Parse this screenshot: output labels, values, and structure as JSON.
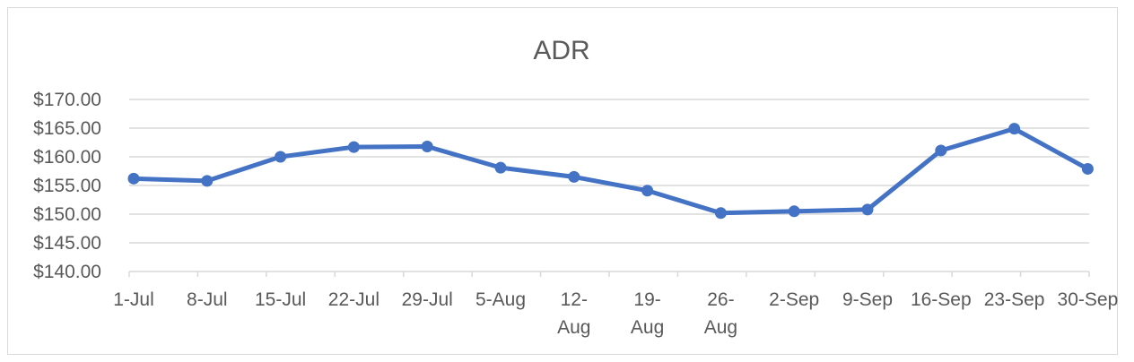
{
  "chart_data": {
    "type": "line",
    "title": "ADR",
    "xlabel": "",
    "ylabel": "",
    "categories": [
      [
        "1-Jul"
      ],
      [
        "8-Jul"
      ],
      [
        "15-Jul"
      ],
      [
        "22-Jul"
      ],
      [
        "29-Jul"
      ],
      [
        "5-Aug"
      ],
      [
        "12-",
        "Aug"
      ],
      [
        "19-",
        "Aug"
      ],
      [
        "26-",
        "Aug"
      ],
      [
        "2-Sep"
      ],
      [
        "9-Sep"
      ],
      [
        "16-Sep"
      ],
      [
        "23-Sep"
      ],
      [
        "30-Sep"
      ]
    ],
    "series": [
      {
        "values": [
          156.2,
          155.8,
          160.0,
          161.7,
          161.8,
          158.1,
          156.5,
          154.1,
          150.2,
          150.5,
          150.8,
          161.1,
          164.9,
          157.9
        ]
      }
    ],
    "ylim": [
      140,
      170
    ],
    "yticks": [
      140,
      145,
      150,
      155,
      160,
      165,
      170
    ],
    "ytick_labels": [
      "$140.00",
      "$145.00",
      "$150.00",
      "$155.00",
      "$160.00",
      "$165.00",
      "$170.00"
    ],
    "grid": true,
    "legend": "none",
    "colors": {
      "line": "#4472C4",
      "grid": "#d9d9d9",
      "text": "#595959"
    }
  }
}
